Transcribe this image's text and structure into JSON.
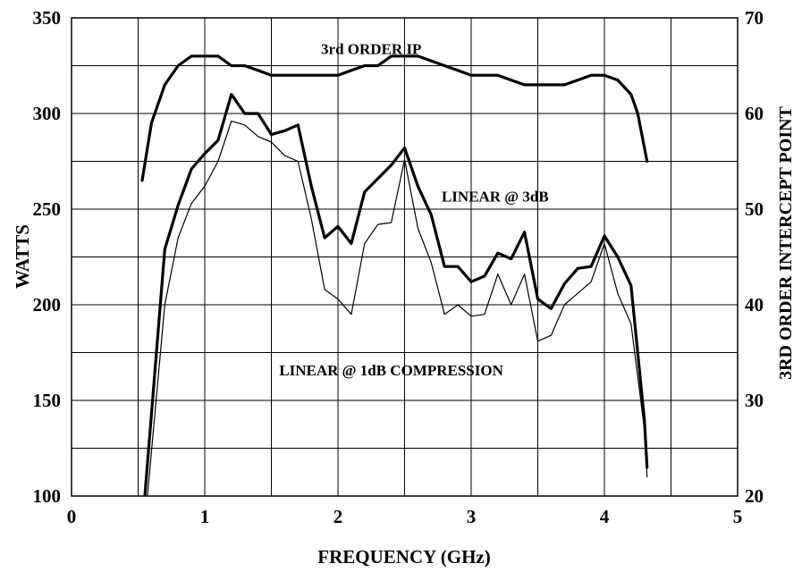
{
  "chart_data": {
    "type": "line",
    "title": "",
    "xlabel": "FREQUENCY (GHz)",
    "ylabel": "WATTS",
    "y2label": "3RD ORDER INTERCEPT POINT",
    "xlim": [
      0,
      5
    ],
    "ylim": [
      100,
      350
    ],
    "y2lim": [
      20,
      70
    ],
    "grid": true,
    "legend": "none",
    "x_ticks": [
      0,
      1,
      2,
      3,
      4,
      5
    ],
    "x_ticklabels": [
      "0",
      "1",
      "2",
      "3",
      "4",
      "5"
    ],
    "y_ticks": [
      100,
      150,
      200,
      250,
      300,
      350
    ],
    "y_ticklabels": [
      "100",
      "150",
      "200",
      "250",
      "300",
      "350"
    ],
    "y2_ticks": [
      20,
      30,
      40,
      50,
      60,
      70
    ],
    "y2_ticklabels": [
      "20",
      "30",
      "40",
      "50",
      "60",
      "70"
    ],
    "series": [
      {
        "label": "3rd ORDER IP",
        "axis": "right",
        "line_width": 3.2,
        "x": [
          0.53,
          0.6,
          0.7,
          0.8,
          0.9,
          1.0,
          1.1,
          1.2,
          1.3,
          1.4,
          1.5,
          1.6,
          1.7,
          1.8,
          1.9,
          2.0,
          2.1,
          2.2,
          2.3,
          2.4,
          2.5,
          2.6,
          2.7,
          2.8,
          2.9,
          3.0,
          3.1,
          3.2,
          3.3,
          3.4,
          3.5,
          3.6,
          3.7,
          3.8,
          3.9,
          4.0,
          4.1,
          4.2,
          4.25,
          4.32
        ],
        "values": [
          53,
          59,
          63,
          65,
          66,
          66,
          66,
          65,
          65,
          64.5,
          64,
          64,
          64,
          64,
          64,
          64,
          64.5,
          65,
          65,
          66,
          66,
          66,
          65.5,
          65,
          64.5,
          64,
          64,
          64,
          63.5,
          63,
          63,
          63,
          63,
          63.5,
          64,
          64,
          63.5,
          62,
          60,
          55
        ]
      },
      {
        "label": "LINEAR @ 3dB",
        "axis": "left",
        "line_width": 3.2,
        "x": [
          0.55,
          0.7,
          0.8,
          0.9,
          1.0,
          1.1,
          1.2,
          1.3,
          1.4,
          1.5,
          1.6,
          1.7,
          1.8,
          1.9,
          2.0,
          2.1,
          2.2,
          2.3,
          2.4,
          2.5,
          2.6,
          2.7,
          2.8,
          2.9,
          3.0,
          3.1,
          3.2,
          3.3,
          3.4,
          3.5,
          3.6,
          3.7,
          3.8,
          3.9,
          4.0,
          4.1,
          4.2,
          4.3,
          4.32
        ],
        "values": [
          100,
          229,
          252,
          271,
          279,
          286,
          310,
          300,
          300,
          289,
          291,
          294,
          262,
          235,
          241,
          232,
          259,
          266,
          273,
          282,
          262,
          247,
          220,
          220,
          212,
          215,
          227,
          224,
          238,
          203,
          198,
          211,
          219,
          220,
          236,
          225,
          210,
          140,
          115
        ]
      },
      {
        "label": "LINEAR @ 1dB COMPRESSION",
        "axis": "left",
        "line_width": 1.2,
        "x": [
          0.57,
          0.7,
          0.8,
          0.9,
          1.0,
          1.1,
          1.2,
          1.3,
          1.4,
          1.5,
          1.6,
          1.7,
          1.8,
          1.9,
          2.0,
          2.1,
          2.2,
          2.3,
          2.4,
          2.5,
          2.6,
          2.7,
          2.8,
          2.9,
          3.0,
          3.1,
          3.2,
          3.3,
          3.4,
          3.5,
          3.6,
          3.7,
          3.8,
          3.9,
          4.0,
          4.1,
          4.2,
          4.3,
          4.32
        ],
        "values": [
          100,
          200,
          235,
          253,
          262,
          275,
          296,
          294,
          288,
          285,
          278,
          275,
          245,
          208,
          203,
          195,
          232,
          242,
          243,
          276,
          240,
          222,
          195,
          200,
          194,
          195,
          216,
          200,
          216,
          181,
          184,
          200,
          206,
          212,
          232,
          206,
          190,
          135,
          110
        ]
      }
    ],
    "annotations": [
      {
        "text": "3rd ORDER IP",
        "x": 2.25,
        "y": 331
      },
      {
        "text": "LINEAR @ 3dB",
        "x": 3.18,
        "y": 254
      },
      {
        "text": "LINEAR @ 1dB COMPRESSION",
        "x": 2.4,
        "y": 163
      }
    ]
  }
}
